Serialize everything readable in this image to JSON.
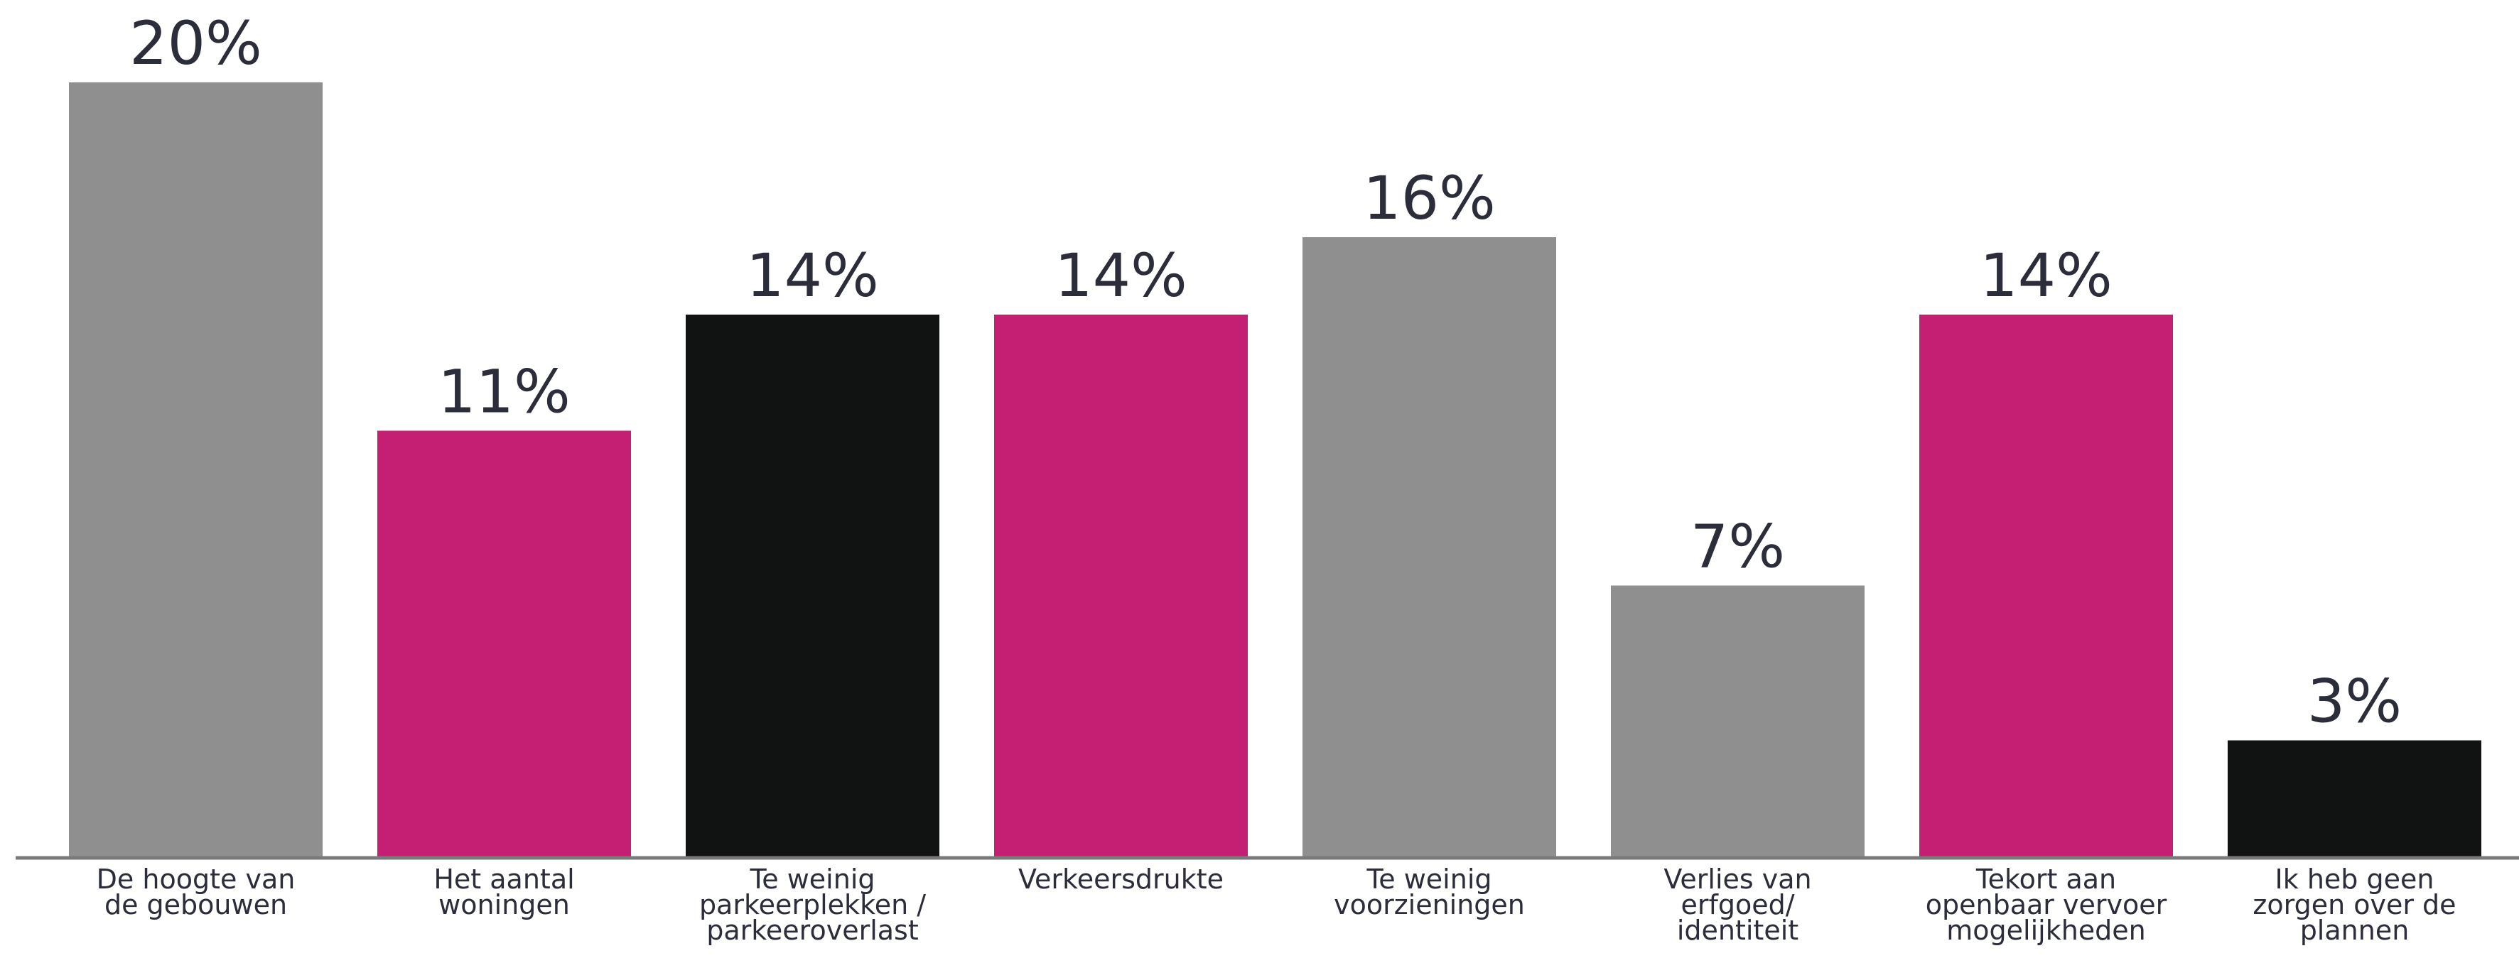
{
  "chart_data": {
    "type": "bar",
    "title": "",
    "xlabel": "",
    "ylabel": "",
    "ylim": [
      0,
      20
    ],
    "grid": false,
    "categories": [
      [
        "De hoogte van",
        "de gebouwen"
      ],
      [
        "Het aantal",
        "woningen"
      ],
      [
        "Te weinig",
        "parkeerplekken /",
        "parkeeroverlast"
      ],
      [
        "Verkeersdrukte"
      ],
      [
        "Te weinig",
        "voorzieningen"
      ],
      [
        "Verlies van",
        "erfgoed/",
        "identiteit"
      ],
      [
        "Tekort aan",
        "openbaar vervoer",
        "mogelijkheden"
      ],
      [
        "Ik heb geen",
        "zorgen over de",
        "plannen"
      ]
    ],
    "values": [
      20,
      11,
      14,
      14,
      16,
      7,
      14,
      3
    ],
    "value_labels": [
      "20%",
      "11%",
      "14%",
      "14%",
      "16%",
      "7%",
      "14%",
      "3%"
    ],
    "bar_colors": [
      "#8f8f8f",
      "#c41f73",
      "#111312",
      "#c41f73",
      "#8f8f8f",
      "#8f8f8f",
      "#c41f73",
      "#111312"
    ],
    "axis_color": "#7a7a7a",
    "text_color": "#2b2d3a"
  }
}
